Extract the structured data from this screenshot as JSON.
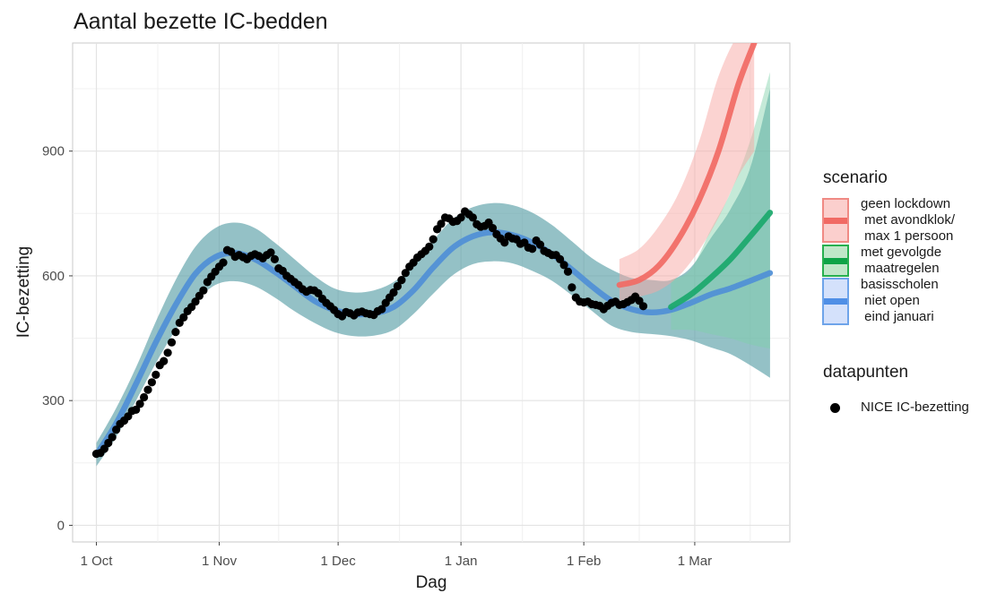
{
  "chart_data": {
    "type": "line",
    "title": "Aantal bezette IC-bedden",
    "xlabel": "Dag",
    "ylabel": "IC-bezetting",
    "x_ticks": [
      {
        "date": "2020-10-01",
        "label": "1 Oct"
      },
      {
        "date": "2020-11-01",
        "label": "1 Nov"
      },
      {
        "date": "2020-12-01",
        "label": "1 Dec"
      },
      {
        "date": "2021-01-01",
        "label": "1 Jan"
      },
      {
        "date": "2021-02-01",
        "label": "1 Feb"
      },
      {
        "date": "2021-03-01",
        "label": "1 Mar"
      }
    ],
    "xlim": [
      "2020-09-25",
      "2021-03-25"
    ],
    "y_ticks": [
      0,
      300,
      600,
      900
    ],
    "ylim": [
      -40,
      1160
    ],
    "grid": true,
    "legend": [
      {
        "title": "scenario",
        "entries": [
          {
            "label": "geen lockdown\n met avondklok/\n max 1 persoon",
            "color": "#f8766d"
          },
          {
            "label": "met gevolgde\n maatregelen",
            "color": "#00ba38"
          },
          {
            "label": "basisscholen\n niet open\n eind januari",
            "color": "#619cff"
          }
        ]
      },
      {
        "title": "datapunten",
        "entries": [
          {
            "label": "NICE IC-bezetting",
            "color": "#000000"
          }
        ]
      }
    ],
    "series": [
      {
        "name": "basisscholen\n niet open\n eind januari",
        "color": "#4f8fd6",
        "band_color": "#5aa0a8",
        "points": [
          {
            "x": "2020-10-01",
            "y": 170,
            "lo": 142,
            "hi": 198
          },
          {
            "x": "2020-10-06",
            "y": 245,
            "lo": 213,
            "hi": 282
          },
          {
            "x": "2020-10-11",
            "y": 340,
            "lo": 300,
            "hi": 380
          },
          {
            "x": "2020-10-16",
            "y": 440,
            "lo": 390,
            "hi": 490
          },
          {
            "x": "2020-10-21",
            "y": 530,
            "lo": 470,
            "hi": 590
          },
          {
            "x": "2020-10-26",
            "y": 605,
            "lo": 537,
            "hi": 670
          },
          {
            "x": "2020-10-31",
            "y": 645,
            "lo": 578,
            "hi": 715
          },
          {
            "x": "2020-11-05",
            "y": 655,
            "lo": 587,
            "hi": 728
          },
          {
            "x": "2020-11-10",
            "y": 640,
            "lo": 575,
            "hi": 715
          },
          {
            "x": "2020-11-15",
            "y": 610,
            "lo": 548,
            "hi": 680
          },
          {
            "x": "2020-11-20",
            "y": 575,
            "lo": 515,
            "hi": 640
          },
          {
            "x": "2020-11-25",
            "y": 540,
            "lo": 487,
            "hi": 600
          },
          {
            "x": "2020-11-30",
            "y": 518,
            "lo": 465,
            "hi": 570
          },
          {
            "x": "2020-12-05",
            "y": 508,
            "lo": 455,
            "hi": 560
          },
          {
            "x": "2020-12-10",
            "y": 510,
            "lo": 456,
            "hi": 565
          },
          {
            "x": "2020-12-15",
            "y": 525,
            "lo": 470,
            "hi": 585
          },
          {
            "x": "2020-12-20",
            "y": 565,
            "lo": 508,
            "hi": 625
          },
          {
            "x": "2020-12-25",
            "y": 620,
            "lo": 557,
            "hi": 685
          },
          {
            "x": "2020-12-30",
            "y": 668,
            "lo": 602,
            "hi": 737
          },
          {
            "x": "2021-01-04",
            "y": 695,
            "lo": 628,
            "hi": 765
          },
          {
            "x": "2021-01-09",
            "y": 705,
            "lo": 635,
            "hi": 775
          },
          {
            "x": "2021-01-14",
            "y": 698,
            "lo": 630,
            "hi": 770
          },
          {
            "x": "2021-01-19",
            "y": 680,
            "lo": 612,
            "hi": 752
          },
          {
            "x": "2021-01-24",
            "y": 652,
            "lo": 588,
            "hi": 722
          },
          {
            "x": "2021-01-29",
            "y": 615,
            "lo": 553,
            "hi": 683
          },
          {
            "x": "2021-02-03",
            "y": 575,
            "lo": 516,
            "hi": 643
          },
          {
            "x": "2021-02-08",
            "y": 540,
            "lo": 480,
            "hi": 615
          },
          {
            "x": "2021-02-13",
            "y": 520,
            "lo": 465,
            "hi": 595
          },
          {
            "x": "2021-02-18",
            "y": 512,
            "lo": 460,
            "hi": 590
          },
          {
            "x": "2021-02-23",
            "y": 518,
            "lo": 455,
            "hi": 590
          },
          {
            "x": "2021-02-28",
            "y": 535,
            "lo": 445,
            "hi": 620
          },
          {
            "x": "2021-03-05",
            "y": 555,
            "lo": 428,
            "hi": 690
          },
          {
            "x": "2021-03-10",
            "y": 570,
            "lo": 412,
            "hi": 760
          },
          {
            "x": "2021-03-15",
            "y": 588,
            "lo": 385,
            "hi": 860
          },
          {
            "x": "2021-03-20",
            "y": 607,
            "lo": 355,
            "hi": 1050
          }
        ]
      },
      {
        "name": "met gevolgde\n maatregelen",
        "color": "#1aa86b",
        "band_color": "#7ed0a8",
        "points": [
          {
            "x": "2021-02-23",
            "y": 525,
            "lo": 470,
            "hi": 590
          },
          {
            "x": "2021-02-28",
            "y": 555,
            "lo": 470,
            "hi": 615
          },
          {
            "x": "2021-03-05",
            "y": 595,
            "lo": 460,
            "hi": 710
          },
          {
            "x": "2021-03-10",
            "y": 640,
            "lo": 450,
            "hi": 800
          },
          {
            "x": "2021-03-15",
            "y": 695,
            "lo": 435,
            "hi": 925
          },
          {
            "x": "2021-03-20",
            "y": 752,
            "lo": 425,
            "hi": 1090
          }
        ]
      },
      {
        "name": "geen lockdown\n met avondklok/\n max 1 persoon",
        "color": "#f16a64",
        "band_color": "#f8a8a4",
        "points": [
          {
            "x": "2021-02-10",
            "y": 578,
            "lo": 540,
            "hi": 640
          },
          {
            "x": "2021-02-15",
            "y": 590,
            "lo": 550,
            "hi": 665
          },
          {
            "x": "2021-02-20",
            "y": 625,
            "lo": 565,
            "hi": 720
          },
          {
            "x": "2021-02-25",
            "y": 690,
            "lo": 600,
            "hi": 800
          },
          {
            "x": "2021-03-02",
            "y": 780,
            "lo": 660,
            "hi": 920
          },
          {
            "x": "2021-03-07",
            "y": 900,
            "lo": 740,
            "hi": 1080
          },
          {
            "x": "2021-03-12",
            "y": 1060,
            "lo": 840,
            "hi": 1180
          },
          {
            "x": "2021-03-16",
            "y": 1160,
            "lo": 900,
            "hi": 1200
          }
        ]
      }
    ],
    "datapoints": {
      "name": "NICE IC-bezetting",
      "x_start": "2020-10-01",
      "y": [
        172,
        174,
        184,
        198,
        212,
        230,
        244,
        252,
        262,
        275,
        278,
        292,
        308,
        326,
        344,
        362,
        385,
        395,
        415,
        440,
        465,
        487,
        500,
        515,
        525,
        538,
        552,
        565,
        585,
        598,
        610,
        622,
        632,
        662,
        658,
        646,
        650,
        645,
        640,
        648,
        652,
        648,
        642,
        650,
        656,
        640,
        618,
        612,
        600,
        593,
        585,
        578,
        568,
        562,
        566,
        565,
        558,
        545,
        535,
        527,
        518,
        508,
        503,
        513,
        510,
        505,
        512,
        514,
        510,
        508,
        506,
        515,
        520,
        535,
        548,
        560,
        575,
        590,
        607,
        622,
        632,
        644,
        652,
        660,
        670,
        688,
        712,
        725,
        740,
        738,
        730,
        732,
        740,
        755,
        748,
        740,
        724,
        718,
        720,
        728,
        715,
        700,
        690,
        680,
        695,
        690,
        688,
        677,
        680,
        668,
        665,
        685,
        675,
        660,
        655,
        650,
        650,
        640,
        626,
        610,
        572,
        548,
        538,
        536,
        538,
        532,
        530,
        528,
        520,
        528,
        535,
        538,
        530,
        532,
        537,
        542,
        550,
        540,
        527
      ]
    }
  }
}
